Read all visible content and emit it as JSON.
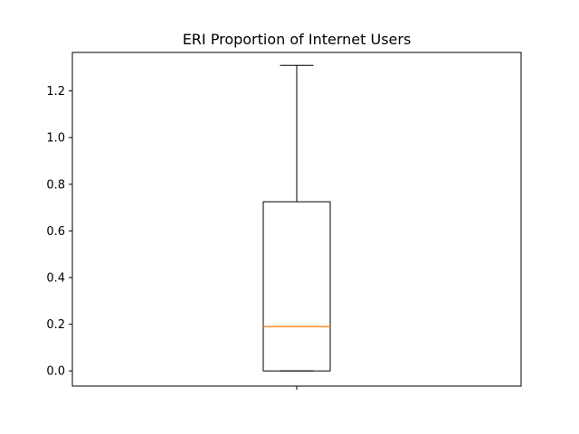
{
  "chart_data": {
    "type": "box",
    "title": "ERI Proportion of Internet Users",
    "xlabel": "",
    "ylabel": "",
    "ylim": [
      -0.065,
      1.365
    ],
    "yticks": [
      0.0,
      0.2,
      0.4,
      0.6,
      0.8,
      1.0,
      1.2
    ],
    "ytick_labels": [
      "0.0",
      "0.2",
      "0.4",
      "0.6",
      "0.8",
      "1.0",
      "1.2"
    ],
    "series": [
      {
        "whisker_low": 0.0,
        "q1": 0.0,
        "median": 0.19,
        "q3": 0.725,
        "whisker_high": 1.31
      }
    ],
    "grid": false,
    "colors": {
      "box": "#000000",
      "median": "#ff7f0e"
    }
  }
}
